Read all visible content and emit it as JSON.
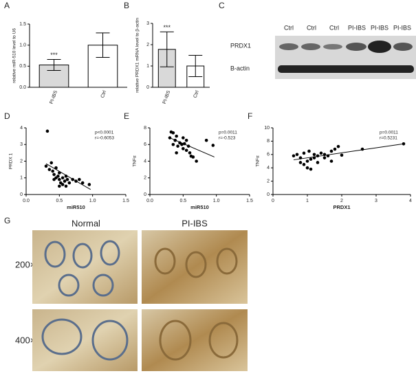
{
  "chart_data": [
    {
      "type": "bar",
      "panel": "A",
      "ylabel": "relative miR-510 level to U6",
      "categories": [
        "PI-IBS",
        "Ctrl"
      ],
      "values": [
        0.53,
        1.0
      ],
      "errors": [
        0.13,
        0.29
      ],
      "colors": [
        "#d9d9d9",
        "#ffffff"
      ],
      "annotations": [
        "***",
        null
      ],
      "ylim": [
        0,
        1.5
      ],
      "yticks": [
        {
          "value": 0,
          "label": "0.0"
        },
        0.5,
        {
          "value": 1,
          "label": "1.0"
        },
        1.5
      ]
    },
    {
      "type": "bar",
      "panel": "B",
      "ylabel": "relative PRDX1 mRNA level to β-actin",
      "categories": [
        "PI-IBS",
        "Ctrl"
      ],
      "values": [
        1.78,
        1.0
      ],
      "errors": [
        0.82,
        0.5
      ],
      "colors": [
        "#d9d9d9",
        "#ffffff"
      ],
      "annotations": [
        "***",
        null
      ],
      "ylim": [
        0,
        3
      ],
      "yticks": [
        0,
        1,
        2,
        3
      ]
    },
    {
      "type": "scatter",
      "panel": "D",
      "xlabel": "miR510",
      "ylabel": "PRDX 1",
      "stats": [
        "p<0.0001",
        "r=-0.6053"
      ],
      "x": [
        0.32,
        0.3,
        0.35,
        0.38,
        0.4,
        0.42,
        0.45,
        0.45,
        0.48,
        0.5,
        0.5,
        0.52,
        0.55,
        0.55,
        0.58,
        0.6,
        0.62,
        0.65,
        0.7,
        0.75,
        0.8,
        0.85,
        0.95,
        0.5,
        0.42,
        0.6
      ],
      "values": [
        3.8,
        1.7,
        1.5,
        1.9,
        1.4,
        1.2,
        1.6,
        1.0,
        1.1,
        0.9,
        1.3,
        0.7,
        1.0,
        0.6,
        0.8,
        1.1,
        0.9,
        0.7,
        0.9,
        0.8,
        0.9,
        0.7,
        0.6,
        0.5,
        0.9,
        0.5
      ],
      "fit": {
        "x": [
          0.3,
          0.97
        ],
        "y": [
          1.85,
          0.3
        ]
      },
      "xlim": [
        0,
        1.5
      ],
      "xticks": [
        {
          "value": 0,
          "label": "0.0"
        },
        0.5,
        {
          "value": 1,
          "label": "1.0"
        },
        1.5
      ],
      "ylim": [
        0,
        4
      ],
      "yticks": [
        0,
        1,
        2,
        3,
        4
      ]
    },
    {
      "type": "scatter",
      "panel": "E",
      "xlabel": "miR510",
      "ylabel": "TNFα",
      "stats": [
        "p=0.0011",
        "r=-0.523"
      ],
      "x": [
        0.32,
        0.35,
        0.38,
        0.3,
        0.4,
        0.45,
        0.42,
        0.48,
        0.5,
        0.52,
        0.55,
        0.55,
        0.6,
        0.62,
        0.65,
        0.7,
        0.4,
        0.5,
        0.85,
        0.95,
        0.58,
        0.35
      ],
      "values": [
        7.5,
        7.4,
        6.5,
        6.8,
        7.0,
        6.2,
        5.8,
        6.0,
        5.5,
        6.1,
        5.3,
        6.5,
        5.0,
        4.6,
        4.5,
        4.0,
        5.0,
        6.8,
        6.5,
        5.9,
        5.8,
        6.0
      ],
      "fit": {
        "x": [
          0.3,
          0.97
        ],
        "y": [
          6.8,
          4.5
        ]
      },
      "xlim": [
        0,
        1.5
      ],
      "xticks": [
        {
          "value": 0,
          "label": "0.0"
        },
        0.5,
        {
          "value": 1,
          "label": "1.0"
        },
        1.5
      ],
      "ylim": [
        0,
        8
      ],
      "yticks": [
        0,
        2,
        4,
        6,
        8
      ]
    },
    {
      "type": "scatter",
      "panel": "F",
      "xlabel": "PRDX1",
      "ylabel": "TNFα",
      "stats": [
        "p=0.0011",
        "r=0.5231"
      ],
      "x": [
        0.6,
        0.7,
        0.8,
        0.9,
        0.9,
        1.0,
        1.0,
        1.1,
        1.1,
        1.2,
        1.2,
        1.3,
        1.3,
        1.4,
        1.5,
        1.5,
        1.6,
        1.7,
        1.8,
        1.9,
        1.7,
        2.0,
        2.6,
        3.8,
        0.8,
        1.05
      ],
      "values": [
        5.8,
        6.0,
        5.5,
        6.2,
        4.5,
        4.0,
        5.0,
        5.3,
        3.8,
        6.0,
        5.5,
        5.8,
        4.8,
        6.2,
        5.5,
        6.0,
        5.8,
        6.5,
        6.8,
        7.2,
        5.0,
        5.9,
        6.8,
        7.6,
        4.8,
        6.5
      ],
      "fit": {
        "x": [
          0.6,
          3.8
        ],
        "y": [
          5.2,
          7.6
        ]
      },
      "xlim": [
        0,
        4
      ],
      "xticks": [
        0,
        1,
        2,
        3,
        4
      ],
      "ylim": [
        0,
        10
      ],
      "yticks": [
        0,
        2,
        4,
        6,
        8,
        10
      ]
    }
  ],
  "blot": {
    "panel": "C",
    "lanes": [
      "Ctrl",
      "Ctrl",
      "Ctrl",
      "PI-IBS",
      "PI-IBS",
      "PI-IBS"
    ],
    "rows": [
      "PRDX1",
      "B-actin"
    ]
  },
  "histology": {
    "panel": "G",
    "columns": [
      "Normal",
      "PI-IBS"
    ],
    "rows": [
      "200×",
      "400×"
    ]
  }
}
